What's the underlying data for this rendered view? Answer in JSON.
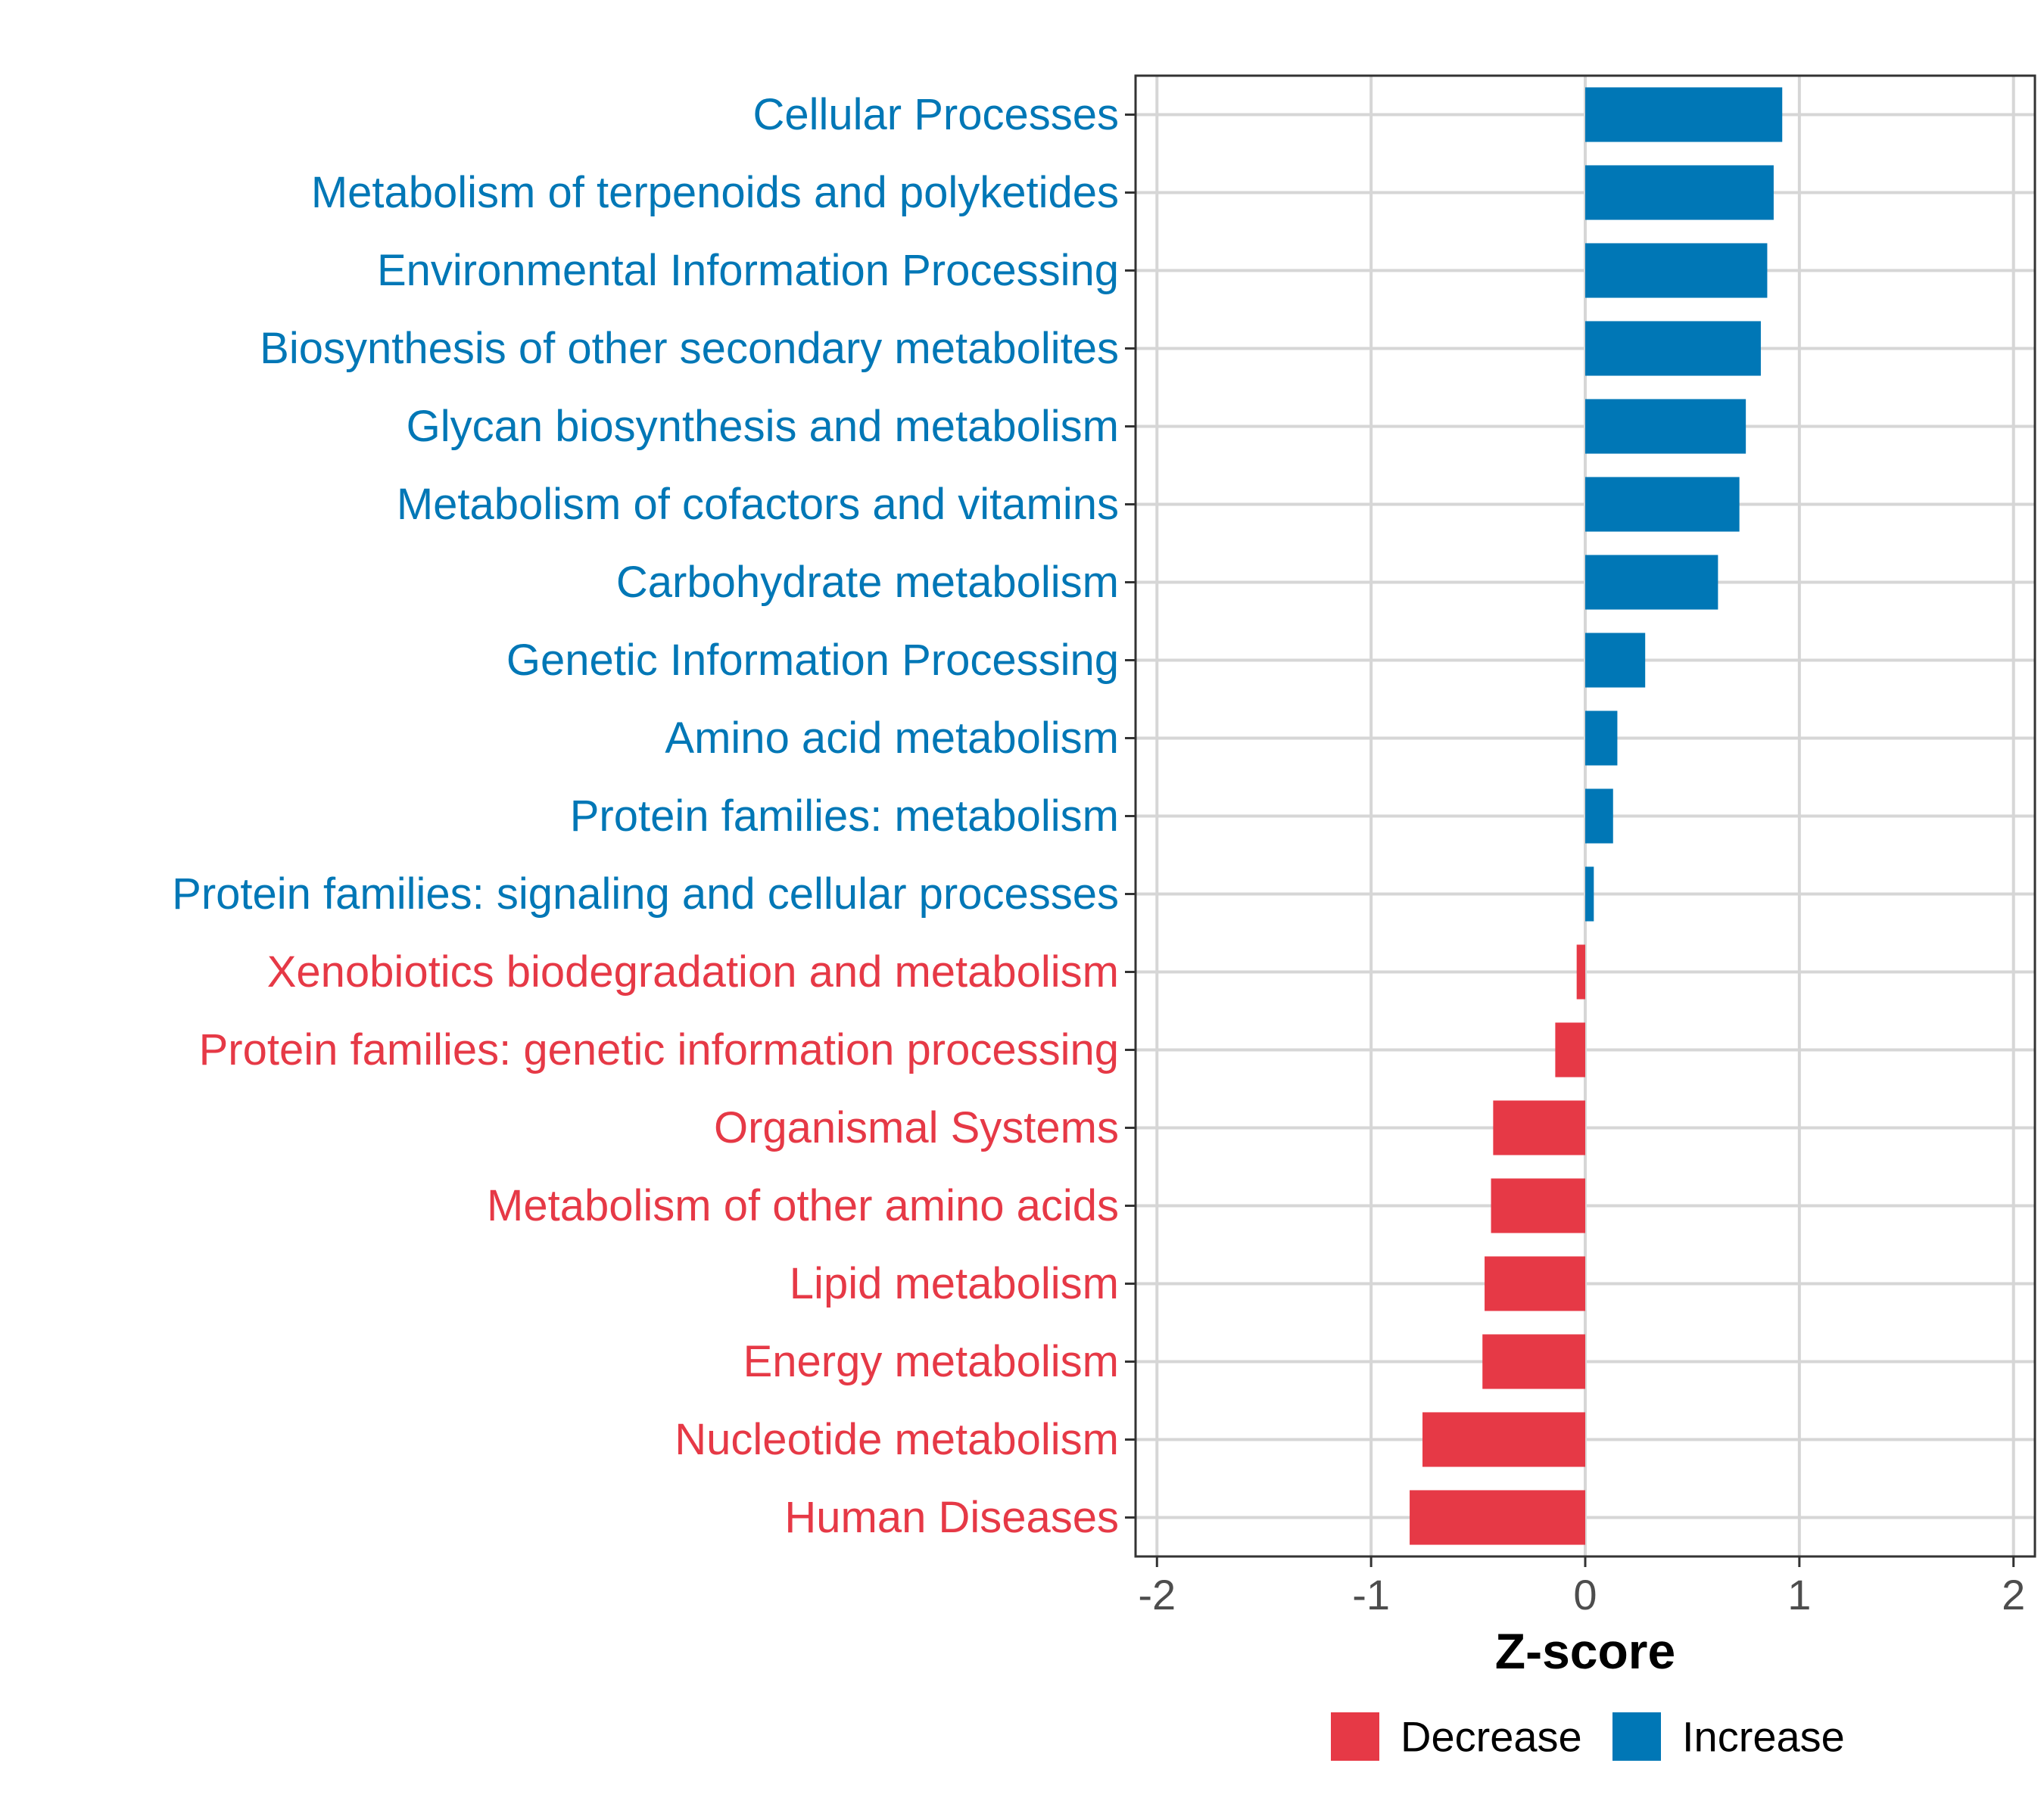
{
  "chart_data": {
    "type": "bar",
    "orientation": "horizontal",
    "title": "",
    "xlabel": "Z-score",
    "ylabel": "",
    "xlim": [
      -2.1,
      2.1
    ],
    "xticks": [
      "-2",
      "-1",
      "0",
      "1",
      "2"
    ],
    "xtick_values": [
      -2,
      -1,
      0,
      1,
      2
    ],
    "grid": true,
    "colors": {
      "Decrease": "#e63946",
      "Increase": "#0077b6"
    },
    "categories": [
      "Cellular Processes",
      "Metabolism of terpenoids and polyketides",
      "Environmental Information Processing",
      "Biosynthesis of other secondary metabolites",
      "Glycan biosynthesis and metabolism",
      "Metabolism of cofactors and vitamins",
      "Carbohydrate metabolism",
      "Genetic Information Processing",
      "Amino acid metabolism",
      "Protein families: metabolism",
      "Protein families: signaling and cellular processes",
      "Xenobiotics biodegradation and metabolism",
      "Protein families: genetic information processing",
      "Organismal Systems",
      "Metabolism of other amino acids",
      "Lipid metabolism",
      "Energy metabolism",
      "Nucleotide metabolism",
      "Human Diseases"
    ],
    "values": [
      0.92,
      0.88,
      0.85,
      0.82,
      0.75,
      0.72,
      0.62,
      0.28,
      0.15,
      0.13,
      0.04,
      -0.04,
      -0.14,
      -0.43,
      -0.44,
      -0.47,
      -0.48,
      -0.76,
      -0.82
    ],
    "groups": [
      "Increase",
      "Increase",
      "Increase",
      "Increase",
      "Increase",
      "Increase",
      "Increase",
      "Increase",
      "Increase",
      "Increase",
      "Increase",
      "Decrease",
      "Decrease",
      "Decrease",
      "Decrease",
      "Decrease",
      "Decrease",
      "Decrease",
      "Decrease"
    ],
    "legend": {
      "position": "bottom",
      "entries": [
        "Decrease",
        "Increase"
      ]
    }
  }
}
